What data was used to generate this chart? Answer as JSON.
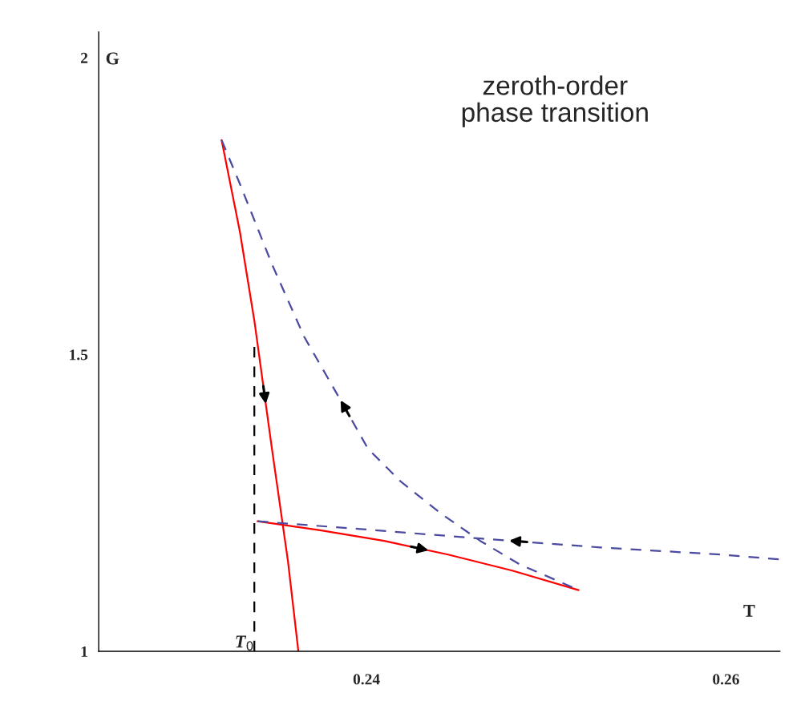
{
  "chart_data": {
    "type": "line",
    "title": "zeroth-order\nphase transition",
    "xlabel": "T",
    "ylabel": "G",
    "xlim": [
      0.2251,
      0.263
    ],
    "ylim": [
      1,
      2.043
    ],
    "xticks": [
      0.24,
      0.26
    ],
    "yticks": [
      1,
      1.5,
      2
    ],
    "series": [
      {
        "color": "#ff0000",
        "line_style": "solid",
        "x": [
          0.23194,
          0.23296,
          0.23376,
          0.23474,
          0.23563,
          0.23621
        ],
        "values": [
          1.861,
          1.706,
          1.557,
          1.341,
          1.152,
          1.0
        ]
      },
      {
        "color": "#ff0000",
        "line_style": "solid",
        "x": [
          0.23394,
          0.23742,
          0.24098,
          0.24454,
          0.24811,
          0.2518
        ],
        "values": [
          1.219,
          1.204,
          1.186,
          1.163,
          1.136,
          1.103
        ]
      },
      {
        "color": "#4a4aa0",
        "line_style": "dashed",
        "x": [
          0.25145,
          0.24855,
          0.24633,
          0.2441,
          0.24187,
          0.24009,
          0.23831,
          0.23653,
          0.23474,
          0.23296,
          0.23194
        ],
        "values": [
          1.108,
          1.146,
          1.186,
          1.233,
          1.287,
          1.341,
          1.436,
          1.53,
          1.652,
          1.787,
          1.861
        ]
      },
      {
        "color": "#4a4aa0",
        "line_style": "dashed",
        "x": [
          0.26294,
          0.25969,
          0.25301,
          0.24633,
          0.23964,
          0.23394
        ],
        "values": [
          1.155,
          1.163,
          1.175,
          1.19,
          1.206,
          1.219
        ]
      }
    ],
    "ref_lines": [
      {
        "axis": "x",
        "value": 0.23376,
        "label": "T$_{0}$",
        "color": "#000000",
        "line_style": "dashed"
      }
    ],
    "grid": false,
    "legend": false,
    "marker": "none"
  }
}
